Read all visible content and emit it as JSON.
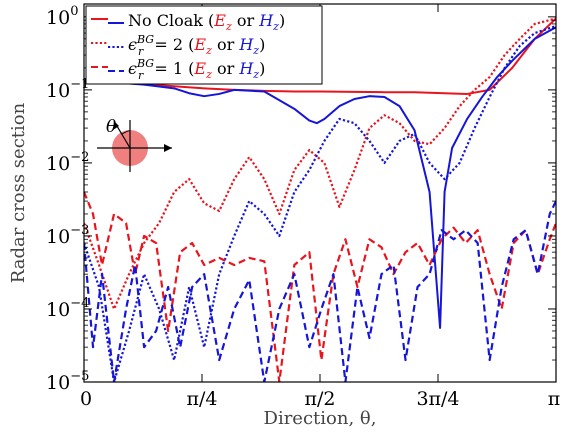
{
  "chart_data": {
    "type": "line",
    "title": "",
    "xlabel": "Direction, θ,",
    "ylabel": "Radar cross section",
    "xlim": [
      0,
      3.14159
    ],
    "ylim": [
      1e-05,
      1.5
    ],
    "yscale": "log",
    "x_ticks": [
      {
        "value": 0,
        "label": "0"
      },
      {
        "value": 0.7854,
        "label": "π/4"
      },
      {
        "value": 1.5708,
        "label": "π/2"
      },
      {
        "value": 2.3562,
        "label": "3π/4"
      },
      {
        "value": 3.1416,
        "label": "π"
      }
    ],
    "y_ticks": [
      {
        "value": 1,
        "base": "10",
        "exp": "0"
      },
      {
        "value": 0.1,
        "base": "10",
        "exp": "−1"
      },
      {
        "value": 0.01,
        "base": "10",
        "exp": "−2"
      },
      {
        "value": 0.001,
        "base": "10",
        "exp": "−3"
      },
      {
        "value": 0.0001,
        "base": "10",
        "exp": "−4"
      },
      {
        "value": 1e-05,
        "base": "10",
        "exp": "−5"
      }
    ],
    "legend": {
      "placement": "top-left",
      "entries": [
        {
          "prefix": "No Cloak (",
          "var1": "E",
          "sub1": "z",
          "mid": " or ",
          "var2": "H",
          "sub2": "z",
          "suffix": ")",
          "style": "solid"
        },
        {
          "prefix": "ϵ",
          "prefix_sub": "r",
          "prefix_sup": "BG",
          "eq": " = 2 (",
          "var1": "E",
          "sub1": "z",
          "mid": " or ",
          "var2": "H",
          "sub2": "z",
          "suffix": ")",
          "style": "dotted"
        },
        {
          "prefix": "ϵ",
          "prefix_sub": "r",
          "prefix_sup": "BG",
          "eq": " = 1 (",
          "var1": "E",
          "sub1": "z",
          "mid": " or ",
          "var2": "H",
          "sub2": "z",
          "suffix": ")",
          "style": "dashed"
        }
      ]
    },
    "inset": {
      "angle_label": "θ"
    },
    "colors": {
      "red": "#e8141e",
      "blue": "#1616d8",
      "pink_circle": "#f08080",
      "ylabel": "#444444"
    },
    "series": [
      {
        "name": "No Cloak (Ez)",
        "color": "red",
        "style": "solid",
        "x": [
          0,
          0.2,
          0.4,
          0.6,
          0.8,
          1.0,
          1.2,
          1.4,
          1.57,
          1.8,
          2.0,
          2.2,
          2.4,
          2.55,
          2.7,
          2.85,
          3.0,
          3.1416
        ],
        "y": [
          0.13,
          0.128,
          0.12,
          0.112,
          0.105,
          0.1,
          0.097,
          0.095,
          0.095,
          0.094,
          0.093,
          0.093,
          0.09,
          0.088,
          0.1,
          0.2,
          0.5,
          0.95
        ]
      },
      {
        "name": "No Cloak (Hz)",
        "color": "blue",
        "style": "solid",
        "x": [
          0,
          0.2,
          0.4,
          0.6,
          0.7,
          0.8,
          0.9,
          1.0,
          1.2,
          1.4,
          1.5,
          1.55,
          1.6,
          1.7,
          1.8,
          1.9,
          2.0,
          2.1,
          2.2,
          2.3,
          2.37,
          2.4,
          2.45,
          2.55,
          2.65,
          2.75,
          2.85,
          3.0,
          3.1416
        ],
        "y": [
          0.13,
          0.127,
          0.118,
          0.105,
          0.09,
          0.082,
          0.088,
          0.1,
          0.095,
          0.055,
          0.038,
          0.035,
          0.04,
          0.06,
          0.075,
          0.082,
          0.08,
          0.06,
          0.028,
          0.004,
          5.5e-05,
          0.004,
          0.016,
          0.04,
          0.08,
          0.15,
          0.25,
          0.5,
          0.72
        ]
      },
      {
        "name": "ϵrBG = 2 (Ez)",
        "color": "red",
        "style": "dotted",
        "x": [
          0,
          0.1,
          0.2,
          0.3,
          0.4,
          0.5,
          0.6,
          0.7,
          0.8,
          0.9,
          1.0,
          1.1,
          1.2,
          1.3,
          1.4,
          1.5,
          1.6,
          1.7,
          1.8,
          1.9,
          2.0,
          2.1,
          2.2,
          2.3,
          2.4,
          2.5,
          2.6,
          2.7,
          2.8,
          2.9,
          3.0,
          3.1416
        ],
        "y": [
          0.0015,
          0.0004,
          0.0001,
          0.0003,
          0.0008,
          0.0015,
          0.004,
          0.006,
          0.0028,
          0.0022,
          0.006,
          0.012,
          0.006,
          0.002,
          0.008,
          0.015,
          0.01,
          0.0025,
          0.008,
          0.03,
          0.045,
          0.035,
          0.02,
          0.018,
          0.03,
          0.06,
          0.1,
          0.15,
          0.3,
          0.5,
          0.8,
          0.95
        ]
      },
      {
        "name": "ϵrBG = 2 (Hz)",
        "color": "blue",
        "style": "dotted",
        "x": [
          0,
          0.1,
          0.2,
          0.3,
          0.4,
          0.5,
          0.6,
          0.7,
          0.8,
          0.9,
          1.0,
          1.1,
          1.2,
          1.3,
          1.4,
          1.5,
          1.6,
          1.7,
          1.8,
          1.9,
          2.0,
          2.1,
          2.2,
          2.3,
          2.4,
          2.5,
          2.6,
          2.7,
          2.8,
          2.9,
          3.0,
          3.1416
        ],
        "y": [
          0.0008,
          0.0002,
          1e-05,
          5e-05,
          0.0003,
          0.0001,
          2e-05,
          0.0002,
          3e-05,
          0.0003,
          0.001,
          0.003,
          0.002,
          0.001,
          0.004,
          0.008,
          0.02,
          0.04,
          0.035,
          0.02,
          0.01,
          0.02,
          0.025,
          0.01,
          0.006,
          0.01,
          0.03,
          0.08,
          0.2,
          0.4,
          0.6,
          0.75
        ]
      },
      {
        "name": "ϵrBG = 1 (Ez)",
        "color": "red",
        "style": "dashed",
        "x": [
          0,
          0.06,
          0.12,
          0.2,
          0.28,
          0.34,
          0.4,
          0.48,
          0.56,
          0.64,
          0.72,
          0.8,
          0.9,
          1.0,
          1.1,
          1.2,
          1.3,
          1.4,
          1.5,
          1.58,
          1.66,
          1.74,
          1.82,
          1.9,
          1.98,
          2.06,
          2.14,
          2.22,
          2.3,
          2.38,
          2.46,
          2.54,
          2.62,
          2.7,
          2.78,
          2.86,
          2.94,
          3.02,
          3.1,
          3.1416
        ],
        "y": [
          0.004,
          0.002,
          0.0004,
          0.002,
          0.0015,
          0.0003,
          0.001,
          0.0008,
          5e-05,
          0.0006,
          0.0008,
          0.0004,
          0.0005,
          0.0004,
          0.0005,
          0.00045,
          1e-05,
          0.0004,
          0.0006,
          2e-05,
          0.0003,
          0.0009,
          0.0002,
          0.0009,
          0.0007,
          0.0003,
          0.0006,
          0.0008,
          0.0004,
          0.0009,
          0.0013,
          0.0008,
          0.0012,
          0.0003,
          0.0001,
          0.0008,
          0.0012,
          0.0003,
          0.0009,
          0.0015
        ]
      },
      {
        "name": "ϵrBG = 1 (Hz)",
        "color": "blue",
        "style": "dashed",
        "x": [
          0,
          0.06,
          0.12,
          0.2,
          0.28,
          0.34,
          0.4,
          0.48,
          0.56,
          0.64,
          0.72,
          0.8,
          0.9,
          1.0,
          1.1,
          1.2,
          1.3,
          1.4,
          1.5,
          1.58,
          1.66,
          1.74,
          1.82,
          1.9,
          1.98,
          2.06,
          2.14,
          2.22,
          2.3,
          2.38,
          2.46,
          2.54,
          2.62,
          2.7,
          2.78,
          2.86,
          2.94,
          3.02,
          3.1,
          3.1416
        ],
        "y": [
          0.0008,
          3e-05,
          0.0003,
          1e-05,
          0.0001,
          0.0004,
          3e-05,
          5e-05,
          0.0002,
          3e-05,
          0.0002,
          0.0003,
          2e-05,
          0.0001,
          0.00025,
          1e-05,
          0.0001,
          0.0003,
          3e-05,
          0.0001,
          0.0003,
          1e-05,
          0.0002,
          4e-05,
          0.0003,
          0.0004,
          2e-05,
          0.0002,
          0.0003,
          0.0012,
          0.0009,
          0.0012,
          0.0008,
          2e-05,
          0.0002,
          0.0009,
          0.0012,
          0.0003,
          0.002,
          0.003
        ]
      }
    ]
  }
}
